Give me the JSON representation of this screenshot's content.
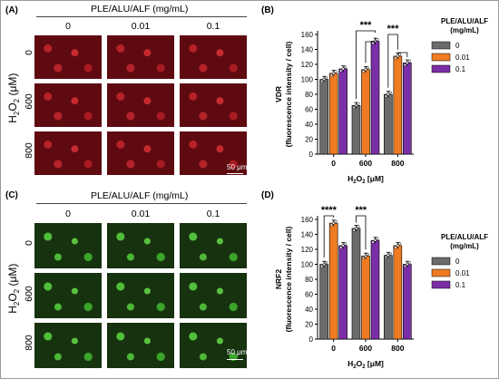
{
  "panels": {
    "A": {
      "label": "(A)",
      "title": "PLE/ALU/ALF (mg/mL)",
      "columns": [
        "0",
        "0.01",
        "0.1"
      ],
      "rows": [
        "0",
        "600",
        "800"
      ],
      "ylabel": "H2O2 (μM)",
      "scale": "50 μm"
    },
    "C": {
      "label": "(C)",
      "title": "PLE/ALU/ALF (mg/mL)",
      "columns": [
        "0",
        "0.01",
        "0.1"
      ],
      "rows": [
        "0",
        "600",
        "800"
      ],
      "ylabel": "H2O2 (μM)",
      "scale": "50 μm"
    },
    "B": {
      "label": "(B)"
    },
    "D": {
      "label": "(D)"
    }
  },
  "colors": {
    "s0": "#6b6b6b",
    "s001": "#ef7b22",
    "s01": "#7b2fa6",
    "red_img": "#7a0c14",
    "green_img": "#1e4a13"
  },
  "chart_data": [
    {
      "panel": "B",
      "type": "bar",
      "categories": [
        "0",
        "600",
        "800"
      ],
      "series": [
        {
          "name": "0",
          "values": [
            100,
            65,
            80
          ]
        },
        {
          "name": "0.01",
          "values": [
            108,
            113,
            131
          ]
        },
        {
          "name": "0.1",
          "values": [
            114,
            151,
            122
          ]
        }
      ],
      "ylim": [
        0,
        160
      ],
      "yticks": [
        "0",
        "20",
        "40",
        "60",
        "80",
        "100",
        "120",
        "140",
        "160"
      ],
      "ylabel_line1": "VDR",
      "ylabel_line2": "(fluorescence intensity / cell)",
      "xlabel": "H2O2 [μM]",
      "legend_title": "PLE/ALU/ALF\n(mg/mL)",
      "legend_entries": [
        "0",
        "0.01",
        "0.1"
      ],
      "annotations": [
        "***",
        "***"
      ]
    },
    {
      "panel": "D",
      "type": "bar",
      "categories": [
        "0",
        "600",
        "800"
      ],
      "series": [
        {
          "name": "0",
          "values": [
            100,
            148,
            112
          ]
        },
        {
          "name": "0.01",
          "values": [
            155,
            111,
            125
          ]
        },
        {
          "name": "0.1",
          "values": [
            125,
            132,
            100
          ]
        }
      ],
      "ylim": [
        0,
        160
      ],
      "yticks": [
        "0",
        "20",
        "40",
        "60",
        "80",
        "100",
        "120",
        "140",
        "160"
      ],
      "ylabel_line1": "NRF2",
      "ylabel_line2": "(fluorescence intensity / cell)",
      "xlabel": "H2O2 [μM]",
      "legend_title": "PLE/ALU/ALF\n(mg/mL)",
      "legend_entries": [
        "0",
        "0.01",
        "0.1"
      ],
      "annotations": [
        "****",
        "***"
      ]
    }
  ]
}
